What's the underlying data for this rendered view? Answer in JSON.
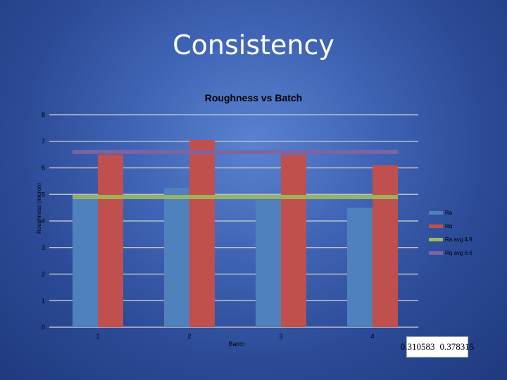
{
  "slide": {
    "title": "Consistency"
  },
  "chart_data": {
    "type": "bar",
    "title": "Roughness vs Batch",
    "xlabel": "Batch",
    "ylabel": "Roughness (micron)",
    "categories": [
      "1",
      "2",
      "3",
      "4"
    ],
    "ylim": [
      0,
      8
    ],
    "yticks": [
      0,
      1,
      2,
      3,
      4,
      5,
      6,
      7,
      8
    ],
    "grid": true,
    "legend_position": "right",
    "series": [
      {
        "name": "Ra",
        "type": "bar",
        "color": "#4f81bd",
        "values": [
          4.85,
          5.25,
          4.8,
          4.5
        ]
      },
      {
        "name": "Rq",
        "type": "bar",
        "color": "#c0504d",
        "values": [
          6.5,
          7.05,
          6.5,
          6.1
        ]
      },
      {
        "name": "Ra avg 4.9",
        "type": "line",
        "color": "#9bbb59",
        "values": [
          4.9,
          4.9,
          4.9,
          4.9
        ]
      },
      {
        "name": "Rq avg 6.6",
        "type": "line",
        "color": "#8064a2",
        "values": [
          6.6,
          6.6,
          6.6,
          6.6
        ]
      }
    ]
  },
  "stats": {
    "value_1": "0.310583",
    "value_2": "0.378315"
  }
}
